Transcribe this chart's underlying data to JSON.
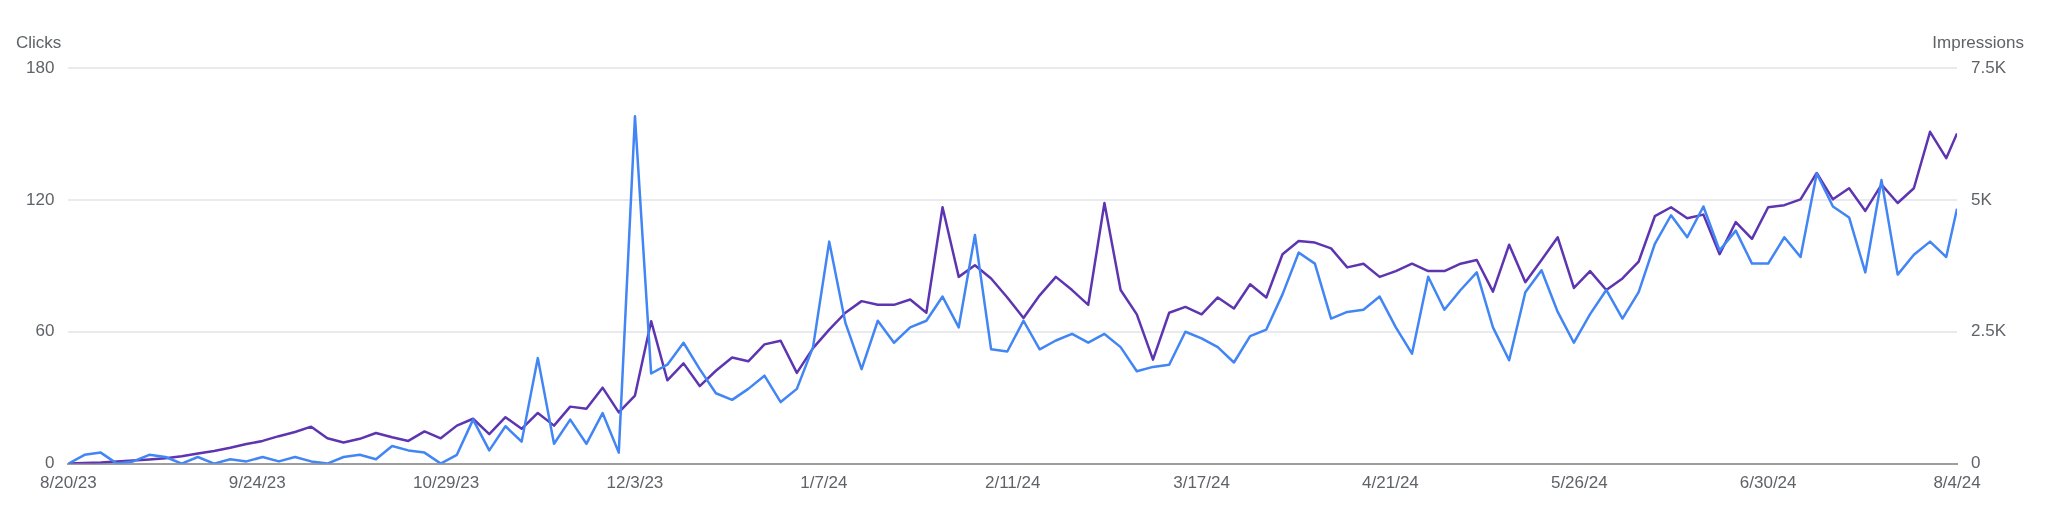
{
  "chart_data": {
    "type": "line",
    "ylabel": "Clicks",
    "y2label": "Impressions",
    "x": [
      "2023-08-20",
      "2023-08-23",
      "2023-08-26",
      "2023-08-29",
      "2023-09-01",
      "2023-09-04",
      "2023-09-07",
      "2023-09-10",
      "2023-09-13",
      "2023-09-16",
      "2023-09-19",
      "2023-09-22",
      "2023-09-25",
      "2023-09-28",
      "2023-10-01",
      "2023-10-04",
      "2023-10-07",
      "2023-10-10",
      "2023-10-13",
      "2023-10-16",
      "2023-10-19",
      "2023-10-22",
      "2023-10-25",
      "2023-10-28",
      "2023-10-31",
      "2023-11-03",
      "2023-11-06",
      "2023-11-09",
      "2023-11-12",
      "2023-11-15",
      "2023-11-18",
      "2023-11-21",
      "2023-11-24",
      "2023-11-27",
      "2023-11-30",
      "2023-12-03",
      "2023-12-06",
      "2023-12-09",
      "2023-12-12",
      "2023-12-15",
      "2023-12-18",
      "2023-12-21",
      "2023-12-24",
      "2023-12-27",
      "2023-12-30",
      "2024-01-02",
      "2024-01-05",
      "2024-01-08",
      "2024-01-11",
      "2024-01-14",
      "2024-01-17",
      "2024-01-20",
      "2024-01-23",
      "2024-01-26",
      "2024-01-29",
      "2024-02-01",
      "2024-02-04",
      "2024-02-07",
      "2024-02-10",
      "2024-02-13",
      "2024-02-16",
      "2024-02-19",
      "2024-02-22",
      "2024-02-25",
      "2024-02-28",
      "2024-03-02",
      "2024-03-05",
      "2024-03-08",
      "2024-03-11",
      "2024-03-14",
      "2024-03-17",
      "2024-03-20",
      "2024-03-23",
      "2024-03-26",
      "2024-03-29",
      "2024-04-01",
      "2024-04-04",
      "2024-04-07",
      "2024-04-10",
      "2024-04-13",
      "2024-04-16",
      "2024-04-19",
      "2024-04-22",
      "2024-04-25",
      "2024-04-28",
      "2024-05-01",
      "2024-05-04",
      "2024-05-07",
      "2024-05-10",
      "2024-05-13",
      "2024-05-16",
      "2024-05-19",
      "2024-05-22",
      "2024-05-25",
      "2024-05-28",
      "2024-05-31",
      "2024-06-03",
      "2024-06-06",
      "2024-06-09",
      "2024-06-12",
      "2024-06-15",
      "2024-06-18",
      "2024-06-21",
      "2024-06-24",
      "2024-06-27",
      "2024-06-30",
      "2024-07-03",
      "2024-07-06",
      "2024-07-09",
      "2024-07-12",
      "2024-07-15",
      "2024-07-18",
      "2024-07-21",
      "2024-07-24",
      "2024-07-27",
      "2024-07-30",
      "2024-08-02",
      "2024-08-04"
    ],
    "series": [
      {
        "color": "#4285f4",
        "values": [
          0,
          4,
          5,
          0,
          1,
          4,
          3,
          0,
          3,
          0,
          2,
          1,
          3,
          1,
          3,
          1,
          0,
          3,
          4,
          2,
          8,
          6,
          5,
          0,
          4,
          20,
          6,
          17,
          10,
          48,
          9,
          20,
          9,
          23,
          5,
          158,
          41,
          45,
          55,
          43,
          32,
          29,
          34,
          40,
          28,
          34,
          53,
          101,
          64,
          43,
          65,
          55,
          62,
          65,
          76,
          62,
          104,
          52,
          51,
          65,
          52,
          56,
          59,
          55,
          59,
          53,
          42,
          44,
          45,
          60,
          57,
          53,
          46,
          58,
          61,
          77,
          96,
          91,
          66,
          69,
          70,
          76,
          62,
          50,
          85,
          70,
          79,
          87,
          62,
          47,
          78,
          88,
          69,
          55,
          68,
          79,
          66,
          78,
          100,
          113,
          103,
          117,
          97,
          106,
          91,
          91,
          103,
          94,
          132,
          117,
          112,
          87,
          129,
          86,
          95,
          101,
          94,
          116
        ]
      },
      {
        "color": "#5e35b1",
        "axis": "y2",
        "values": [
          0,
          10,
          20,
          40,
          60,
          80,
          100,
          140,
          190,
          240,
          300,
          370,
          430,
          520,
          600,
          700,
          480,
          400,
          470,
          580,
          500,
          430,
          610,
          480,
          720,
          850,
          560,
          880,
          660,
          960,
          720,
          1080,
          1040,
          1440,
          970,
          1290,
          2700,
          1580,
          1900,
          1470,
          1760,
          2010,
          1940,
          2260,
          2330,
          1720,
          2190,
          2540,
          2860,
          3080,
          3010,
          3010,
          3110,
          2860,
          4860,
          3540,
          3760,
          3510,
          3150,
          2760,
          3190,
          3540,
          3290,
          3010,
          4940,
          3290,
          2830,
          1970,
          2860,
          2970,
          2830,
          3150,
          2940,
          3400,
          3150,
          3970,
          4220,
          4190,
          4080,
          3720,
          3790,
          3540,
          3650,
          3790,
          3650,
          3650,
          3790,
          3860,
          3260,
          4150,
          3440,
          3860,
          4290,
          3330,
          3650,
          3290,
          3510,
          3830,
          4690,
          4860,
          4650,
          4720,
          3970,
          4580,
          4260,
          4860,
          4900,
          5010,
          5510,
          5010,
          5220,
          4790,
          5290,
          4940,
          5220,
          6290,
          5790,
          6260
        ]
      }
    ],
    "xlim": [
      "2023-08-20",
      "2024-08-04"
    ],
    "xticks": [
      {
        "value": "2023-08-20",
        "label": "8/20/23"
      },
      {
        "value": "2023-09-24",
        "label": "9/24/23"
      },
      {
        "value": "2023-10-29",
        "label": "10/29/23"
      },
      {
        "value": "2023-12-03",
        "label": "12/3/23"
      },
      {
        "value": "2024-01-07",
        "label": "1/7/24"
      },
      {
        "value": "2024-02-11",
        "label": "2/11/24"
      },
      {
        "value": "2024-03-17",
        "label": "3/17/24"
      },
      {
        "value": "2024-04-21",
        "label": "4/21/24"
      },
      {
        "value": "2024-05-26",
        "label": "5/26/24"
      },
      {
        "value": "2024-06-30",
        "label": "6/30/24"
      },
      {
        "value": "2024-08-04",
        "label": "8/4/24"
      }
    ],
    "ylim": [
      0,
      180
    ],
    "yticks": [
      0,
      60,
      120,
      180
    ],
    "y2lim": [
      0,
      7500
    ],
    "y2ticks": [
      0,
      {
        "value": 2500,
        "label": "2.5K"
      },
      {
        "value": 5000,
        "label": "5K"
      },
      {
        "value": 7500,
        "label": "7.5K"
      }
    ],
    "grid": "y",
    "legend": false,
    "marker": "none"
  }
}
